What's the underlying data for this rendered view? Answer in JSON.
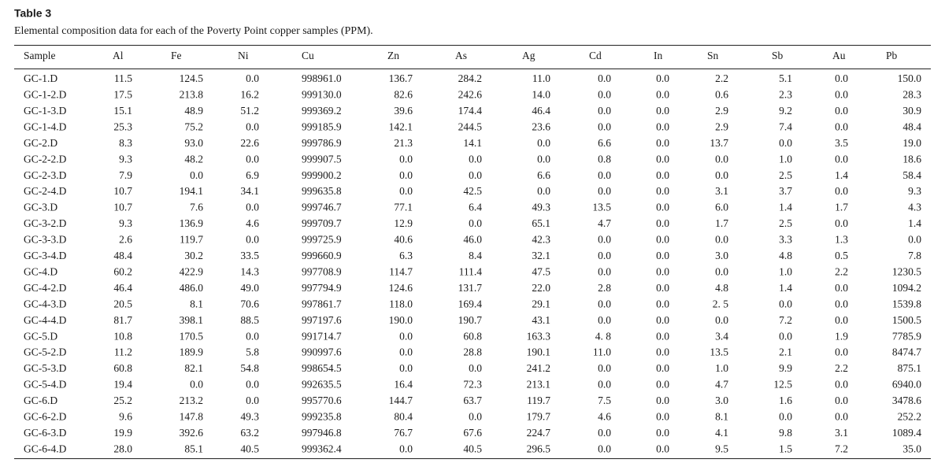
{
  "title": "Table 3",
  "caption": "Elemental composition data for each of the Poverty Point copper samples (PPM).",
  "table": {
    "header": [
      "Sample",
      "Al",
      "Fe",
      "Ni",
      "Cu",
      "Zn",
      "As",
      "Ag",
      "Cd",
      "In",
      "Sn",
      "Sb",
      "Au",
      "Pb"
    ],
    "rows": [
      [
        "GC-1.D",
        "11.5",
        "124.5",
        "0.0",
        "998961.0",
        "136.7",
        "284.2",
        "11.0",
        "0.0",
        "0.0",
        "2.2",
        "5.1",
        "0.0",
        "150.0"
      ],
      [
        "GC-1-2.D",
        "17.5",
        "213.8",
        "16.2",
        "999130.0",
        "82.6",
        "242.6",
        "14.0",
        "0.0",
        "0.0",
        "0.6",
        "2.3",
        "0.0",
        "28.3"
      ],
      [
        "GC-1-3.D",
        "15.1",
        "48.9",
        "51.2",
        "999369.2",
        "39.6",
        "174.4",
        "46.4",
        "0.0",
        "0.0",
        "2.9",
        "9.2",
        "0.0",
        "30.9"
      ],
      [
        "GC-1-4.D",
        "25.3",
        "75.2",
        "0.0",
        "999185.9",
        "142.1",
        "244.5",
        "23.6",
        "0.0",
        "0.0",
        "2.9",
        "7.4",
        "0.0",
        "48.4"
      ],
      [
        "GC-2.D",
        "8.3",
        "93.0",
        "22.6",
        "999786.9",
        "21.3",
        "14.1",
        "0.0",
        "6.6",
        "0.0",
        "13.7",
        "0.0",
        "3.5",
        "19.0"
      ],
      [
        "GC-2-2.D",
        "9.3",
        "48.2",
        "0.0",
        "999907.5",
        "0.0",
        "0.0",
        "0.0",
        "0.8",
        "0.0",
        "0.0",
        "1.0",
        "0.0",
        "18.6"
      ],
      [
        "GC-2-3.D",
        "7.9",
        "0.0",
        "6.9",
        "999900.2",
        "0.0",
        "0.0",
        "6.6",
        "0.0",
        "0.0",
        "0.0",
        "2.5",
        "1.4",
        "58.4"
      ],
      [
        "GC-2-4.D",
        "10.7",
        "194.1",
        "34.1",
        "999635.8",
        "0.0",
        "42.5",
        "0.0",
        "0.0",
        "0.0",
        "3.1",
        "3.7",
        "0.0",
        "9.3"
      ],
      [
        "GC-3.D",
        "10.7",
        "7.6",
        "0.0",
        "999746.7",
        "77.1",
        "6.4",
        "49.3",
        "13.5",
        "0.0",
        "6.0",
        "1.4",
        "1.7",
        "4.3"
      ],
      [
        "GC-3-2.D",
        "9.3",
        "136.9",
        "4.6",
        "999709.7",
        "12.9",
        "0.0",
        "65.1",
        "4.7",
        "0.0",
        "1.7",
        "2.5",
        "0.0",
        "1.4"
      ],
      [
        "GC-3-3.D",
        "2.6",
        "119.7",
        "0.0",
        "999725.9",
        "40.6",
        "46.0",
        "42.3",
        "0.0",
        "0.0",
        "0.0",
        "3.3",
        "1.3",
        "0.0"
      ],
      [
        "GC-3-4.D",
        "48.4",
        "30.2",
        "33.5",
        "999660.9",
        "6.3",
        "8.4",
        "32.1",
        "0.0",
        "0.0",
        "3.0",
        "4.8",
        "0.5",
        "7.8"
      ],
      [
        "GC-4.D",
        "60.2",
        "422.9",
        "14.3",
        "997708.9",
        "114.7",
        "111.4",
        "47.5",
        "0.0",
        "0.0",
        "0.0",
        "1.0",
        "2.2",
        "1230.5"
      ],
      [
        "GC-4-2.D",
        "46.4",
        "486.0",
        "49.0",
        "997794.9",
        "124.6",
        "131.7",
        "22.0",
        "2.8",
        "0.0",
        "4.8",
        "1.4",
        "0.0",
        "1094.2"
      ],
      [
        "GC-4-3.D",
        "20.5",
        "8.1",
        "70.6",
        "997861.7",
        "118.0",
        "169.4",
        "29.1",
        "0.0",
        "0.0",
        "2. 5",
        "0.0",
        "0.0",
        "1539.8"
      ],
      [
        "GC-4-4.D",
        "81.7",
        "398.1",
        "88.5",
        "997197.6",
        "190.0",
        "190.7",
        "43.1",
        "0.0",
        "0.0",
        "0.0",
        "7.2",
        "0.0",
        "1500.5"
      ],
      [
        "GC-5.D",
        "10.8",
        "170.5",
        "0.0",
        "991714.7",
        "0.0",
        "60.8",
        "163.3",
        "4. 8",
        "0.0",
        "3.4",
        "0.0",
        "1.9",
        "7785.9"
      ],
      [
        "GC-5-2.D",
        "11.2",
        "189.9",
        "5.8",
        "990997.6",
        "0.0",
        "28.8",
        "190.1",
        "11.0",
        "0.0",
        "13.5",
        "2.1",
        "0.0",
        "8474.7"
      ],
      [
        "GC-5-3.D",
        "60.8",
        "82.1",
        "54.8",
        "998654.5",
        "0.0",
        "0.0",
        "241.2",
        "0.0",
        "0.0",
        "1.0",
        "9.9",
        "2.2",
        "875.1"
      ],
      [
        "GC-5-4.D",
        "19.4",
        "0.0",
        "0.0",
        "992635.5",
        "16.4",
        "72.3",
        "213.1",
        "0.0",
        "0.0",
        "4.7",
        "12.5",
        "0.0",
        "6940.0"
      ],
      [
        "GC-6.D",
        "25.2",
        "213.2",
        "0.0",
        "995770.6",
        "144.7",
        "63.7",
        "119.7",
        "7.5",
        "0.0",
        "3.0",
        "1.6",
        "0.0",
        "3478.6"
      ],
      [
        "GC-6-2.D",
        "9.6",
        "147.8",
        "49.3",
        "999235.8",
        "80.4",
        "0.0",
        "179.7",
        "4.6",
        "0.0",
        "8.1",
        "0.0",
        "0.0",
        "252.2"
      ],
      [
        "GC-6-3.D",
        "19.9",
        "392.6",
        "63.2",
        "997946.8",
        "76.7",
        "67.6",
        "224.7",
        "0.0",
        "0.0",
        "4.1",
        "9.8",
        "3.1",
        "1089.4"
      ],
      [
        "GC-6-4.D",
        "28.0",
        "85.1",
        "40.5",
        "999362.4",
        "0.0",
        "40.5",
        "296.5",
        "0.0",
        "0.0",
        "9.5",
        "1.5",
        "7.2",
        "35.0"
      ]
    ]
  }
}
